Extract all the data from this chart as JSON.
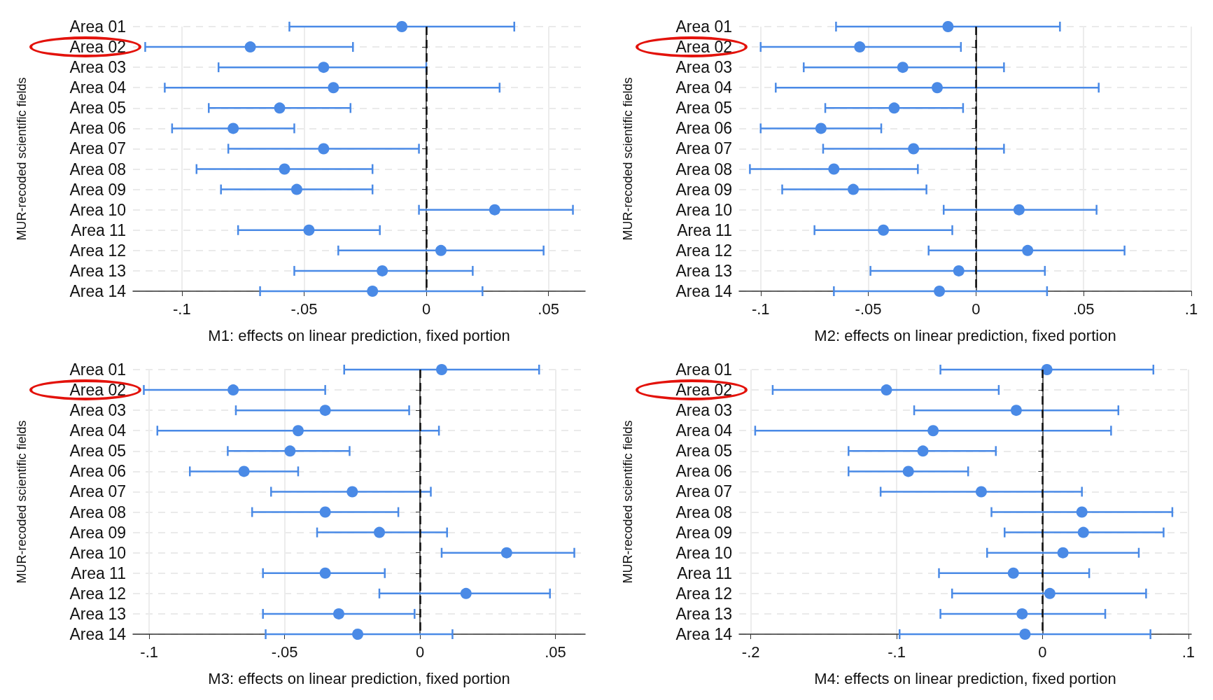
{
  "chart_data": [
    {
      "type": "scatter",
      "orientation": "horizontal",
      "marker": "circle",
      "color": "#4a8ae6",
      "grid": true,
      "xlabel": "M1: effects on linear prediction, fixed portion",
      "ylabel": "MUR-recoded scientific fields",
      "categories": [
        "Area 01",
        "Area 02",
        "Area 03",
        "Area 04",
        "Area 05",
        "Area 06",
        "Area 07",
        "Area 08",
        "Area 09",
        "Area 10",
        "Area 11",
        "Area 12",
        "Area 13",
        "Area 14"
      ],
      "values": [
        -0.01,
        -0.072,
        -0.042,
        -0.038,
        -0.06,
        -0.079,
        -0.042,
        -0.058,
        -0.053,
        0.028,
        -0.048,
        0.006,
        -0.018,
        -0.022
      ],
      "errors": [
        [
          -0.056,
          0.036
        ],
        [
          -0.115,
          -0.03
        ],
        [
          -0.085,
          0.0
        ],
        [
          -0.107,
          0.03
        ],
        [
          -0.089,
          -0.031
        ],
        [
          -0.104,
          -0.054
        ],
        [
          -0.081,
          -0.003
        ],
        [
          -0.094,
          -0.022
        ],
        [
          -0.084,
          -0.022
        ],
        [
          -0.003,
          0.06
        ],
        [
          -0.077,
          -0.019
        ],
        [
          -0.036,
          0.048
        ],
        [
          -0.054,
          0.019
        ],
        [
          -0.068,
          0.023
        ]
      ],
      "xlim": [
        -0.12,
        0.065
      ],
      "xticks": [
        {
          "value": -0.1,
          "label": "-.1"
        },
        {
          "value": -0.05,
          "label": "-.05"
        },
        {
          "value": 0,
          "label": "0"
        },
        {
          "value": 0.05,
          "label": ".05"
        }
      ],
      "ref_lines": [
        {
          "axis": "x",
          "value": 0,
          "label": null,
          "color": "#111111",
          "line_style": "dashed"
        }
      ]
    },
    {
      "type": "scatter",
      "orientation": "horizontal",
      "marker": "circle",
      "color": "#4a8ae6",
      "grid": true,
      "xlabel": "M2: effects on linear prediction, fixed portion",
      "ylabel": "MUR-recoded scientific fields",
      "categories": [
        "Area 01",
        "Area 02",
        "Area 03",
        "Area 04",
        "Area 05",
        "Area 06",
        "Area 07",
        "Area 08",
        "Area 09",
        "Area 10",
        "Area 11",
        "Area 12",
        "Area 13",
        "Area 14"
      ],
      "values": [
        -0.013,
        -0.054,
        -0.034,
        -0.018,
        -0.038,
        -0.072,
        -0.029,
        -0.066,
        -0.057,
        0.02,
        -0.043,
        0.024,
        -0.008,
        -0.017
      ],
      "errors": [
        [
          -0.065,
          0.039
        ],
        [
          -0.1,
          -0.007
        ],
        [
          -0.08,
          0.013
        ],
        [
          -0.093,
          0.057
        ],
        [
          -0.07,
          -0.006
        ],
        [
          -0.1,
          -0.044
        ],
        [
          -0.071,
          0.013
        ],
        [
          -0.105,
          -0.027
        ],
        [
          -0.09,
          -0.023
        ],
        [
          -0.015,
          0.056
        ],
        [
          -0.075,
          -0.011
        ],
        [
          -0.022,
          0.069
        ],
        [
          -0.049,
          0.032
        ],
        [
          -0.066,
          0.033
        ]
      ],
      "xlim": [
        -0.11,
        0.1
      ],
      "xticks": [
        {
          "value": -0.1,
          "label": "-.1"
        },
        {
          "value": -0.05,
          "label": "-.05"
        },
        {
          "value": 0,
          "label": "0"
        },
        {
          "value": 0.05,
          "label": ".05"
        },
        {
          "value": 0.1,
          "label": ".1"
        }
      ],
      "ref_lines": [
        {
          "axis": "x",
          "value": 0,
          "label": null,
          "color": "#111111",
          "line_style": "dashed"
        }
      ]
    },
    {
      "type": "scatter",
      "orientation": "horizontal",
      "marker": "circle",
      "color": "#4a8ae6",
      "grid": true,
      "xlabel": "M3: effects on linear prediction, fixed portion",
      "ylabel": "MUR-recoded scientific fields",
      "categories": [
        "Area 01",
        "Area 02",
        "Area 03",
        "Area 04",
        "Area 05",
        "Area 06",
        "Area 07",
        "Area 08",
        "Area 09",
        "Area 10",
        "Area 11",
        "Area 12",
        "Area 13",
        "Area 14"
      ],
      "values": [
        0.008,
        -0.069,
        -0.035,
        -0.045,
        -0.048,
        -0.065,
        -0.025,
        -0.035,
        -0.015,
        0.032,
        -0.035,
        0.017,
        -0.03,
        -0.023
      ],
      "errors": [
        [
          -0.028,
          0.044
        ],
        [
          -0.102,
          -0.035
        ],
        [
          -0.068,
          -0.004
        ],
        [
          -0.097,
          0.007
        ],
        [
          -0.071,
          -0.026
        ],
        [
          -0.085,
          -0.045
        ],
        [
          -0.055,
          0.004
        ],
        [
          -0.062,
          -0.008
        ],
        [
          -0.038,
          0.01
        ],
        [
          0.008,
          0.057
        ],
        [
          -0.058,
          -0.013
        ],
        [
          -0.015,
          0.048
        ],
        [
          -0.058,
          -0.002
        ],
        [
          -0.057,
          0.012
        ]
      ],
      "xlim": [
        -0.106,
        0.061
      ],
      "xticks": [
        {
          "value": -0.1,
          "label": "-.1"
        },
        {
          "value": -0.05,
          "label": "-.05"
        },
        {
          "value": 0,
          "label": "0"
        },
        {
          "value": 0.05,
          "label": ".05"
        }
      ],
      "ref_lines": [
        {
          "axis": "x",
          "value": 0,
          "label": null,
          "color": "#111111",
          "line_style": "dashed"
        }
      ]
    },
    {
      "type": "scatter",
      "orientation": "horizontal",
      "marker": "circle",
      "color": "#4a8ae6",
      "grid": true,
      "xlabel": "M4: effects on linear prediction, fixed portion",
      "ylabel": "MUR-recoded scientific fields",
      "categories": [
        "Area 01",
        "Area 02",
        "Area 03",
        "Area 04",
        "Area 05",
        "Area 06",
        "Area 07",
        "Area 08",
        "Area 09",
        "Area 10",
        "Area 11",
        "Area 12",
        "Area 13",
        "Area 14"
      ],
      "values": [
        0.003,
        -0.107,
        -0.018,
        -0.075,
        -0.082,
        -0.092,
        -0.042,
        0.027,
        0.028,
        0.014,
        -0.02,
        0.005,
        -0.014,
        -0.012
      ],
      "errors": [
        [
          -0.07,
          0.076
        ],
        [
          -0.185,
          -0.03
        ],
        [
          -0.088,
          0.052
        ],
        [
          -0.197,
          0.047
        ],
        [
          -0.133,
          -0.032
        ],
        [
          -0.133,
          -0.051
        ],
        [
          -0.111,
          0.027
        ],
        [
          -0.035,
          0.089
        ],
        [
          -0.026,
          0.083
        ],
        [
          -0.038,
          0.066
        ],
        [
          -0.071,
          0.032
        ],
        [
          -0.062,
          0.071
        ],
        [
          -0.07,
          0.043
        ],
        [
          -0.098,
          0.074
        ]
      ],
      "xlim": [
        -0.208,
        0.102
      ],
      "xticks": [
        {
          "value": -0.2,
          "label": "-.2"
        },
        {
          "value": -0.1,
          "label": "-.1"
        },
        {
          "value": 0,
          "label": "0"
        },
        {
          "value": 0.1,
          "label": ".1"
        }
      ],
      "ref_lines": [
        {
          "axis": "x",
          "value": 0,
          "label": null,
          "color": "#111111",
          "line_style": "dashed"
        }
      ]
    }
  ]
}
